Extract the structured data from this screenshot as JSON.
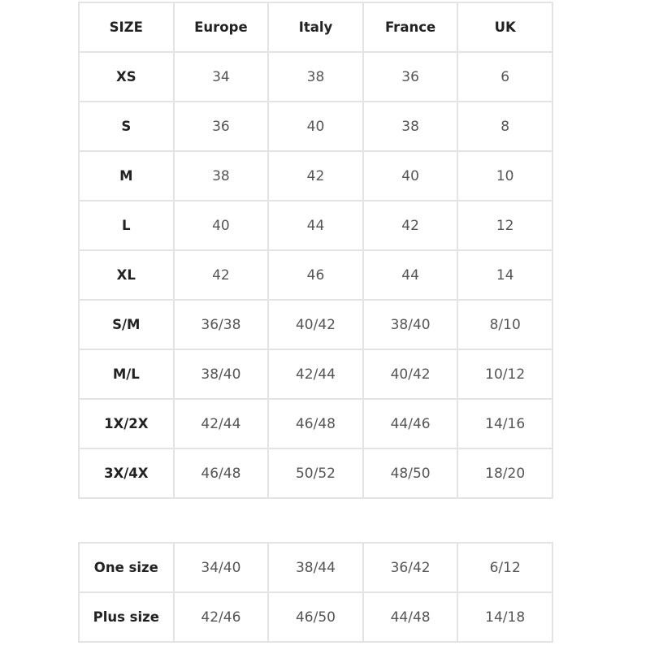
{
  "size_table": {
    "headers": [
      "SIZE",
      "Europe",
      "Italy",
      "France",
      "UK"
    ],
    "rows": [
      [
        "XS",
        "34",
        "38",
        "36",
        "6"
      ],
      [
        "S",
        "36",
        "40",
        "38",
        "8"
      ],
      [
        "M",
        "38",
        "42",
        "40",
        "10"
      ],
      [
        "L",
        "40",
        "44",
        "42",
        "12"
      ],
      [
        "XL",
        "42",
        "46",
        "44",
        "14"
      ],
      [
        "S/M",
        "36/38",
        "40/42",
        "38/40",
        "8/10"
      ],
      [
        "M/L",
        "38/40",
        "42/44",
        "40/42",
        "10/12"
      ],
      [
        "1X/2X",
        "42/44",
        "46/48",
        "44/46",
        "14/16"
      ],
      [
        "3X/4X",
        "46/48",
        "50/52",
        "48/50",
        "18/20"
      ]
    ]
  },
  "extra_table": {
    "rows": [
      [
        "One size",
        "34/40",
        "38/44",
        "36/42",
        "6/12"
      ],
      [
        "Plus size",
        "42/46",
        "46/50",
        "44/48",
        "14/18"
      ]
    ]
  },
  "colors": {
    "border": "#e3e3e3",
    "label_text": "#222222",
    "value_text": "#555555"
  }
}
